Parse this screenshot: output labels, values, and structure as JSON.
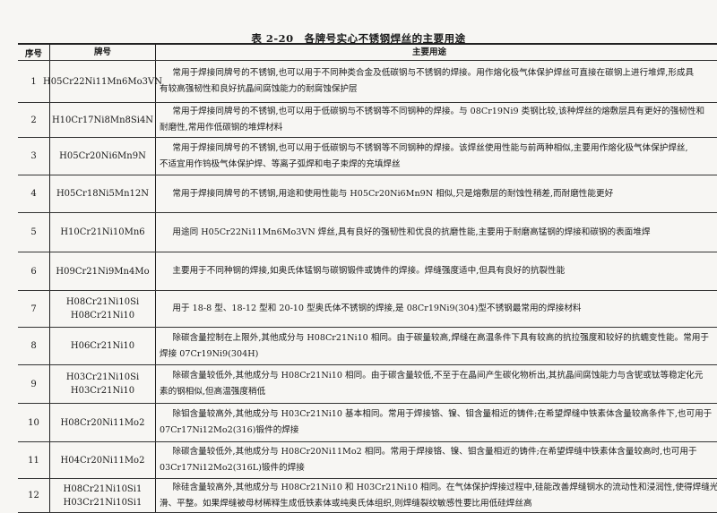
{
  "title": "表 2-20　各牌号实心不锈钢焊丝的主要用途",
  "headers": {
    "no": "序号",
    "grade": "牌号",
    "usage": "主要用途"
  },
  "rows": [
    {
      "no": "1",
      "grade": [
        "H05Cr22Ni11Mn6Mo3VN"
      ],
      "usage": [
        "常用于焊接同牌号的不锈钢,也可以用于不同种类合金及低碳钢与不锈钢的焊接。用作熔化极气体保护焊丝可直接在碳钢上进行堆焊,形成具",
        "有较高强韧性和良好抗晶间腐蚀能力的耐腐蚀保护层"
      ]
    },
    {
      "no": "2",
      "grade": [
        "H10Cr17Ni8Mn8Si4N"
      ],
      "usage": [
        "常用于焊接同牌号的不锈钢,也可以用于低碳钢与不锈钢等不同钢种的焊接。与 08Cr19Ni9 类钢比较,该种焊丝的熔敷层具有更好的强韧性和",
        "耐磨性,常用作低碳钢的堆焊材料"
      ]
    },
    {
      "no": "3",
      "grade": [
        "H05Cr20Ni6Mn9N"
      ],
      "usage": [
        "常用于焊接同牌号的不锈钢,也可以用于低碳钢与不锈钢等不同钢种的焊接。该焊丝使用性能与前两种相似,主要用作熔化极气体保护焊丝,",
        "不适宜用作钨极气体保护焊、等离子弧焊和电子束焊的充填焊丝"
      ]
    },
    {
      "no": "4",
      "grade": [
        "H05Cr18Ni5Mn12N"
      ],
      "usage": [
        "常用于焊接同牌号的不锈钢,用途和使用性能与 H05Cr20Ni6Mn9N 相似,只是熔敷层的耐蚀性稍差,而耐磨性能更好"
      ]
    },
    {
      "no": "5",
      "grade": [
        "H10Cr21Ni10Mn6"
      ],
      "usage": [
        "用途同 H05Cr22Ni11Mn6Mo3VN 焊丝,具有良好的强韧性和优良的抗磨性能,主要用于耐磨高锰钢的焊接和碳钢的表面堆焊"
      ]
    },
    {
      "no": "6",
      "grade": [
        "H09Cr21Ni9Mn4Mo"
      ],
      "usage": [
        "主要用于不同种钢的焊接,如奥氏体锰钢与碳钢锻件或铸件的焊接。焊缝强度适中,但具有良好的抗裂性能"
      ]
    },
    {
      "no": "7",
      "grade": [
        "H08Cr21Ni10Si",
        "H08Cr21Ni10"
      ],
      "usage": [
        "用于 18-8 型、18-12 型和 20-10 型奥氏体不锈钢的焊接,是 08Cr19Ni9(304)型不锈钢最常用的焊接材料"
      ]
    },
    {
      "no": "8",
      "grade": [
        "H06Cr21Ni10"
      ],
      "usage": [
        "除碳含量控制在上限外,其他成分与 H08Cr21Ni10 相同。由于碳量较高,焊缝在高温条件下具有较高的抗拉强度和较好的抗蠕变性能。常用于",
        "焊接 07Cr19Ni9(304H)"
      ]
    },
    {
      "no": "9",
      "grade": [
        "H03Cr21Ni10Si",
        "H03Cr21Ni10"
      ],
      "usage": [
        "除碳含量较低外,其他成分与 H08Cr21Ni10 相同。由于碳含量较低,不至于在晶间产生碳化物析出,其抗晶间腐蚀能力与含铌或钛等稳定化元",
        "素的钢相似,但高温强度稍低"
      ]
    },
    {
      "no": "10",
      "grade": [
        "H08Cr20Ni11Mo2"
      ],
      "usage": [
        "除钼含量较高外,其他成分与 H03Cr21Ni10 基本相同。常用于焊接铬、镍、钼含量相近的铸件;在希望焊缝中铁素体含量较高条件下,也可用于",
        "07Cr17Ni12Mo2(316)锻件的焊接"
      ]
    },
    {
      "no": "11",
      "grade": [
        "H04Cr20Ni11Mo2"
      ],
      "usage": [
        "除碳含量较低外,其他成分与 H08Cr20Ni11Mo2 相同。常用于焊接铬、镍、钼含量相近的铸件;在希望焊缝中铁素体含量较高时,也可用于",
        "03Cr17Ni12Mo2(316L)锻件的焊接"
      ]
    },
    {
      "no": "12",
      "grade": [
        "H08Cr21Ni10Si1",
        "H03Cr21Ni10Si1"
      ],
      "usage": [
        "除硅含量较高外,其他成分与 H08Cr21Ni10 和 H03Cr21Ni10 相同。在气体保护焊接过程中,硅能改善焊缝钢水的流动性和浸润性,使得焊缝光",
        "滑、平整。如果焊缝被母材稀释生成低铁素体或纯奥氏体组织,则焊缝裂纹敏感性要比用低硅焊丝高"
      ]
    }
  ]
}
